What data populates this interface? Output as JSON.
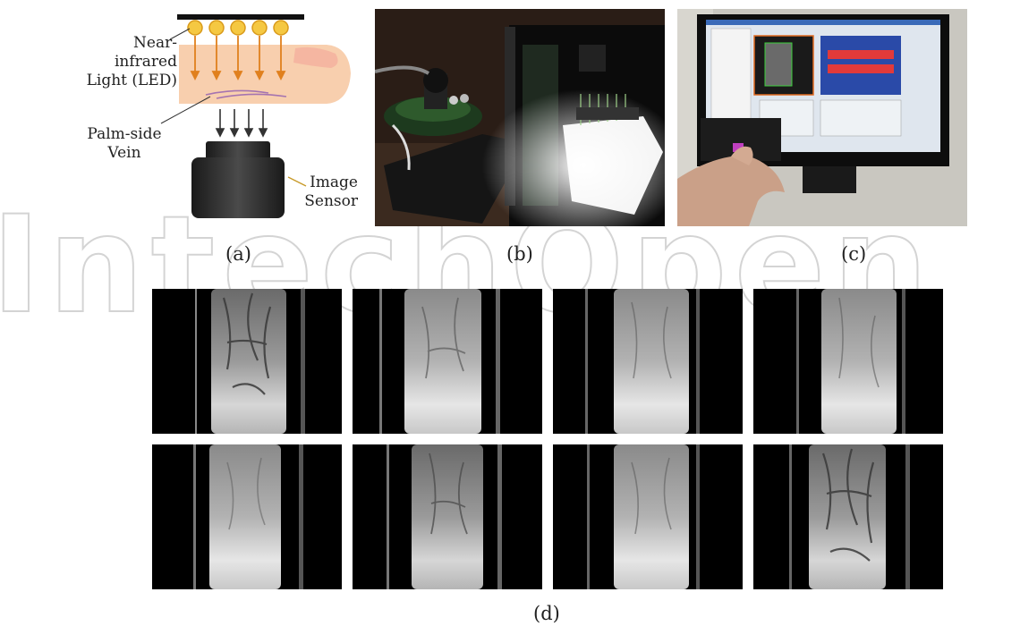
{
  "panel_a": {
    "label": "(a)",
    "led_label_line1": "Near-infrared",
    "led_label_line2": "Light (LED)",
    "vein_label_line1": "Palm-side",
    "vein_label_line2": "Vein",
    "sensor_label_line1": "Image",
    "sensor_label_line2": "Sensor"
  },
  "panel_b": {
    "label": "(b)"
  },
  "panel_c": {
    "label": "(c)"
  },
  "panel_d": {
    "label": "(d)"
  },
  "colors": {
    "led": "#f5c842",
    "arrow_orange": "#e0801e",
    "finger": "#f7c9a3",
    "vein": "#a06aa8",
    "sensor": "#333333",
    "watermark": "#cfcfcf"
  }
}
